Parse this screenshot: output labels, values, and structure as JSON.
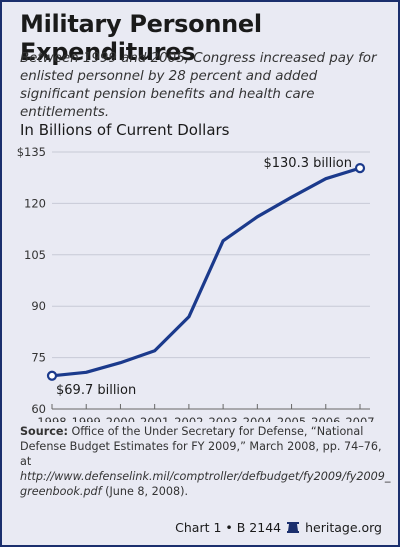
{
  "title": "Military Personnel Expenditures",
  "subtitle": "Between 1999 and 2005, Congress increased pay for enlisted personnel by 28 percent and added significant pension benefits and health care entitlements.",
  "unit_label": "In Billions of Current Dollars",
  "colors": {
    "line": "#1b3a8c",
    "frame": "#1b2f6d",
    "background": "#e9eaf3",
    "grid": "#c8cad6"
  },
  "chart_data": {
    "type": "line",
    "x": [
      1998,
      1999,
      2000,
      2001,
      2002,
      2003,
      2004,
      2005,
      2006,
      2007
    ],
    "series": [
      {
        "values": [
          69.7,
          70.7,
          73.5,
          77.0,
          86.9,
          109.1,
          116.1,
          121.8,
          127.2,
          130.3
        ]
      }
    ],
    "ylim": [
      60,
      135
    ],
    "y_ticks": [
      60,
      75,
      90,
      105,
      120,
      135
    ],
    "y_tick_labels": [
      "60",
      "75",
      "90",
      "105",
      "120",
      "$135"
    ],
    "x_tick_labels": [
      "1998",
      "1999",
      "2000",
      "2001",
      "2002",
      "2003",
      "2004",
      "2005",
      "2006",
      "2007"
    ],
    "grid": true,
    "annotations": [
      {
        "text": "$69.7 billion",
        "x": 1998,
        "y": 69.7
      },
      {
        "text": "$130.3 billion",
        "x": 2007,
        "y": 130.3
      }
    ]
  },
  "source": {
    "label": "Source:",
    "text": "Office of the Under Secretary for Defense, “National Defense Budget Estimates for FY 2009,” March 2008, pp. 74–76, at",
    "url": "http://www.defenselink.mil/comptroller/defbudget/fy2009/fy2009_ greenbook.pdf",
    "date": "(June 8, 2008)."
  },
  "footer": {
    "chart_id": "Chart 1 • B 2144",
    "site": "heritage.org"
  }
}
